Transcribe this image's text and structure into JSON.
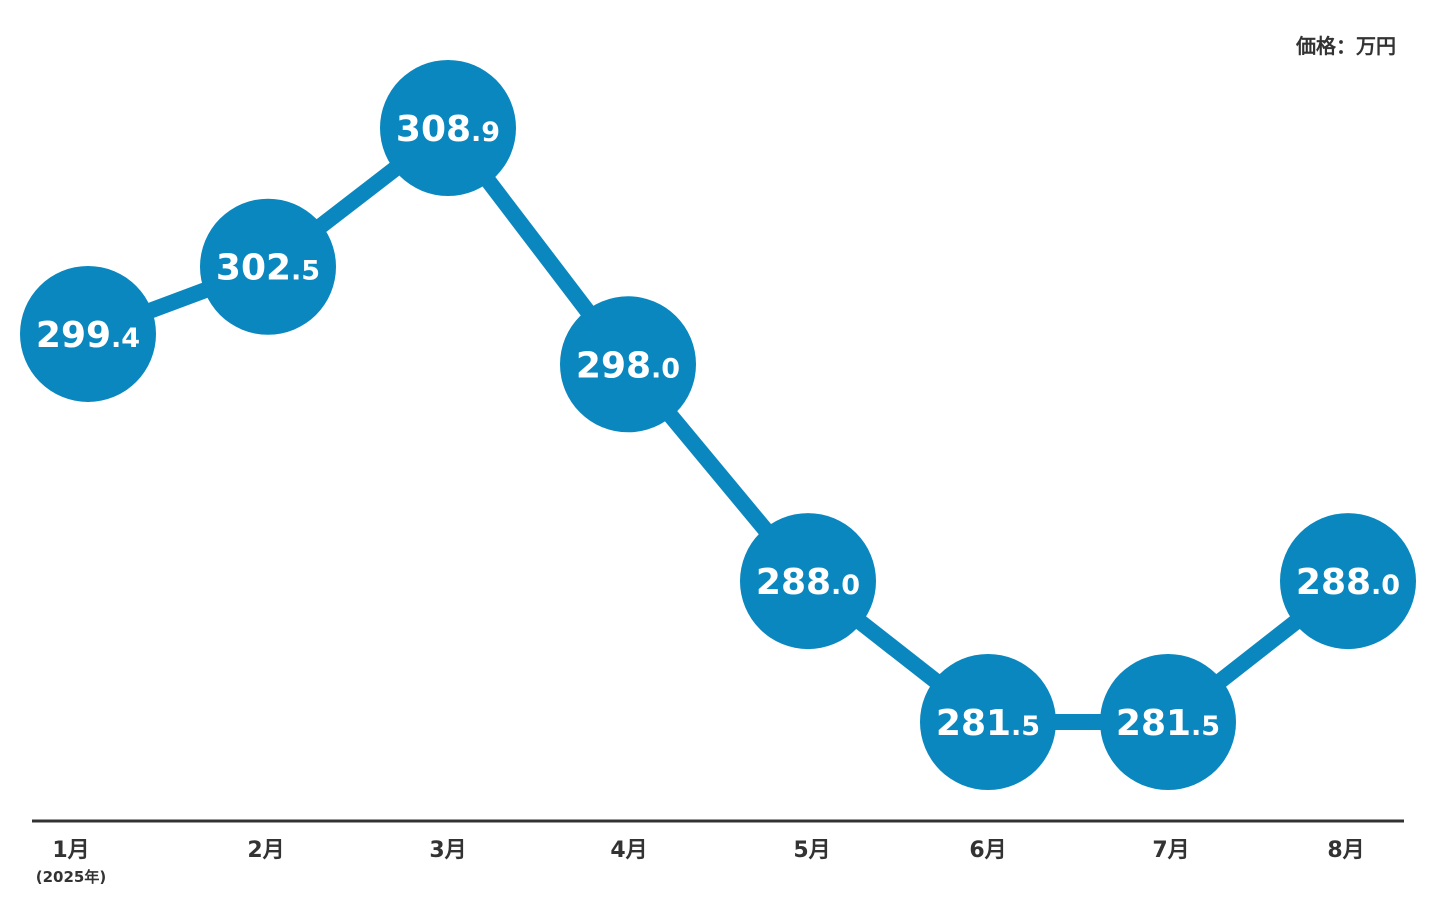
{
  "chart_data": {
    "type": "line",
    "unit_label": "価格：万円",
    "categories": [
      "1月",
      "2月",
      "3月",
      "4月",
      "5月",
      "6月",
      "7月",
      "8月"
    ],
    "year_note": "(2025年)",
    "series": [
      {
        "values": [
          299.4,
          302.5,
          308.9,
          298.0,
          288.0,
          281.5,
          281.5,
          288.0
        ],
        "labels": [
          "299.4",
          "302.5",
          "308.9",
          "298.0",
          "288.0",
          "281.5",
          "281.5",
          "288.0"
        ]
      }
    ],
    "ylim": [
      278,
      312
    ],
    "legend": "none",
    "grid": false
  },
  "colors": {
    "series": "#0a87bf",
    "axis": "#333333",
    "label_text": "#ffffff"
  }
}
